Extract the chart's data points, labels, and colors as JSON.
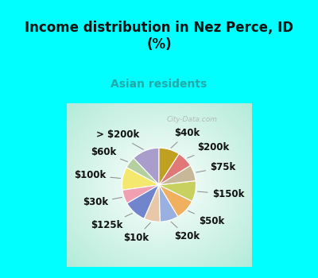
{
  "title": "Income distribution in Nez Perce, ID\n(%)",
  "subtitle": "Asian residents",
  "title_color": "#111111",
  "subtitle_color": "#22aaaa",
  "bg_cyan": "#00ffff",
  "watermark": "City-Data.com",
  "labels": [
    "> $200k",
    "$60k",
    "$100k",
    "$30k",
    "$125k",
    "$10k",
    "$20k",
    "$50k",
    "$150k",
    "$75k",
    "$200k",
    "$40k"
  ],
  "values": [
    12,
    5,
    10,
    6,
    10,
    7,
    8,
    9,
    9,
    7,
    7,
    9
  ],
  "colors": [
    "#a99dcc",
    "#b5d0a0",
    "#f5e86e",
    "#f0a0b0",
    "#7085cc",
    "#e8c8a8",
    "#9ab0e0",
    "#f0b060",
    "#c8d060",
    "#c8b89a",
    "#e07878",
    "#c0a020"
  ],
  "label_fontsize": 8.5,
  "figsize": [
    4.0,
    3.5
  ],
  "dpi": 100
}
